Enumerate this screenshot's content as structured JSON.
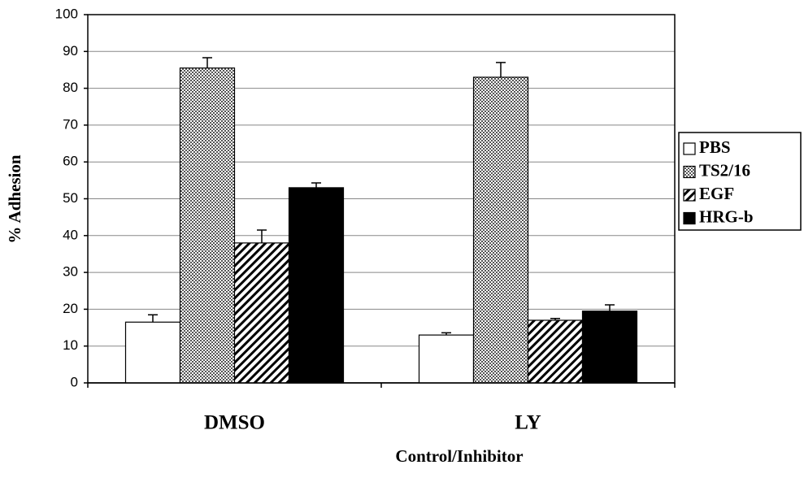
{
  "chart_data": {
    "type": "bar",
    "x_label": "Control/Inhibitor",
    "y_label": "% Adhesion",
    "categories": [
      "DMSO",
      "LY"
    ],
    "series": [
      {
        "name": "PBS",
        "color": "#ffffff",
        "pattern": "none",
        "values": [
          16.5,
          13
        ],
        "errors": [
          2,
          0.6
        ]
      },
      {
        "name": "TS2/16",
        "color": "#555555",
        "pattern": "crosshatch",
        "values": [
          85.5,
          83
        ],
        "errors": [
          2.8,
          4
        ]
      },
      {
        "name": "EGF",
        "color": "#000000",
        "pattern": "hatch",
        "values": [
          38,
          17
        ],
        "errors": [
          3.5,
          0.5
        ]
      },
      {
        "name": "HRG-b",
        "color": "#000000",
        "pattern": "solid",
        "values": [
          53,
          19.5
        ],
        "errors": [
          1.3,
          1.7
        ]
      }
    ],
    "ylim": [
      0,
      100
    ],
    "yticks": [
      0,
      10,
      20,
      30,
      40,
      50,
      60,
      70,
      80,
      90,
      100
    ],
    "grid": true,
    "legend": "right"
  }
}
